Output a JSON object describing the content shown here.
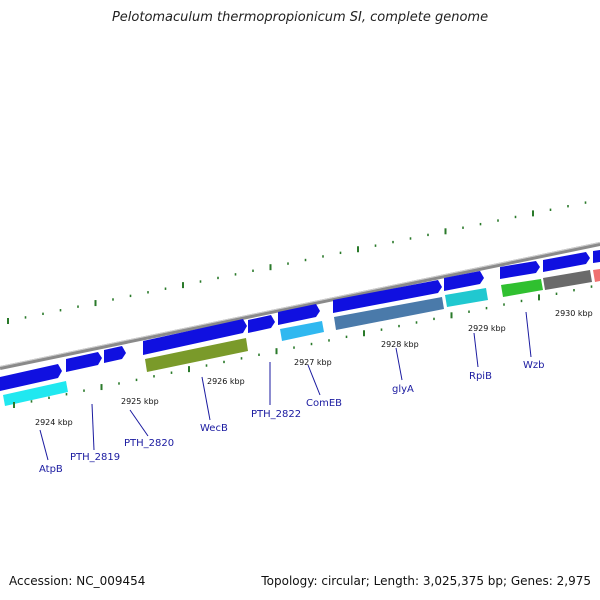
{
  "title": "Pelotomaculum thermopropionicum SI, complete genome",
  "footer": {
    "accession": "Accession: NC_009454",
    "summary": "Topology: circular; Length: 3,025,375 bp; Genes: 2,975"
  },
  "colors": {
    "forward_gene": "#1010e0",
    "backbone": "#8a8a8a",
    "tick": "#2a7a2a",
    "label": "#1a1aa0",
    "cyan": "#20e8f0",
    "olive": "#7a9a2a",
    "light_blue": "#30b8f0",
    "steel_blue": "#4a7aaa",
    "teal": "#20c8d0",
    "green": "#30c030",
    "gray": "#6a6a6a",
    "pink": "#f07070"
  },
  "axis_ticks": [
    {
      "label": "2924 kbp"
    },
    {
      "label": "2925 kbp"
    },
    {
      "label": "2926 kbp"
    },
    {
      "label": "2927 kbp"
    },
    {
      "label": "2928 kbp"
    },
    {
      "label": "2929 kbp"
    },
    {
      "label": "2930 kbp"
    }
  ],
  "gene_labels": [
    {
      "name": "AtpB"
    },
    {
      "name": "PTH_2819"
    },
    {
      "name": "PTH_2820"
    },
    {
      "name": "WecB"
    },
    {
      "name": "PTH_2822"
    },
    {
      "name": "ComEB"
    },
    {
      "name": "glyA"
    },
    {
      "name": "RpiB"
    },
    {
      "name": "Wzb"
    }
  ]
}
